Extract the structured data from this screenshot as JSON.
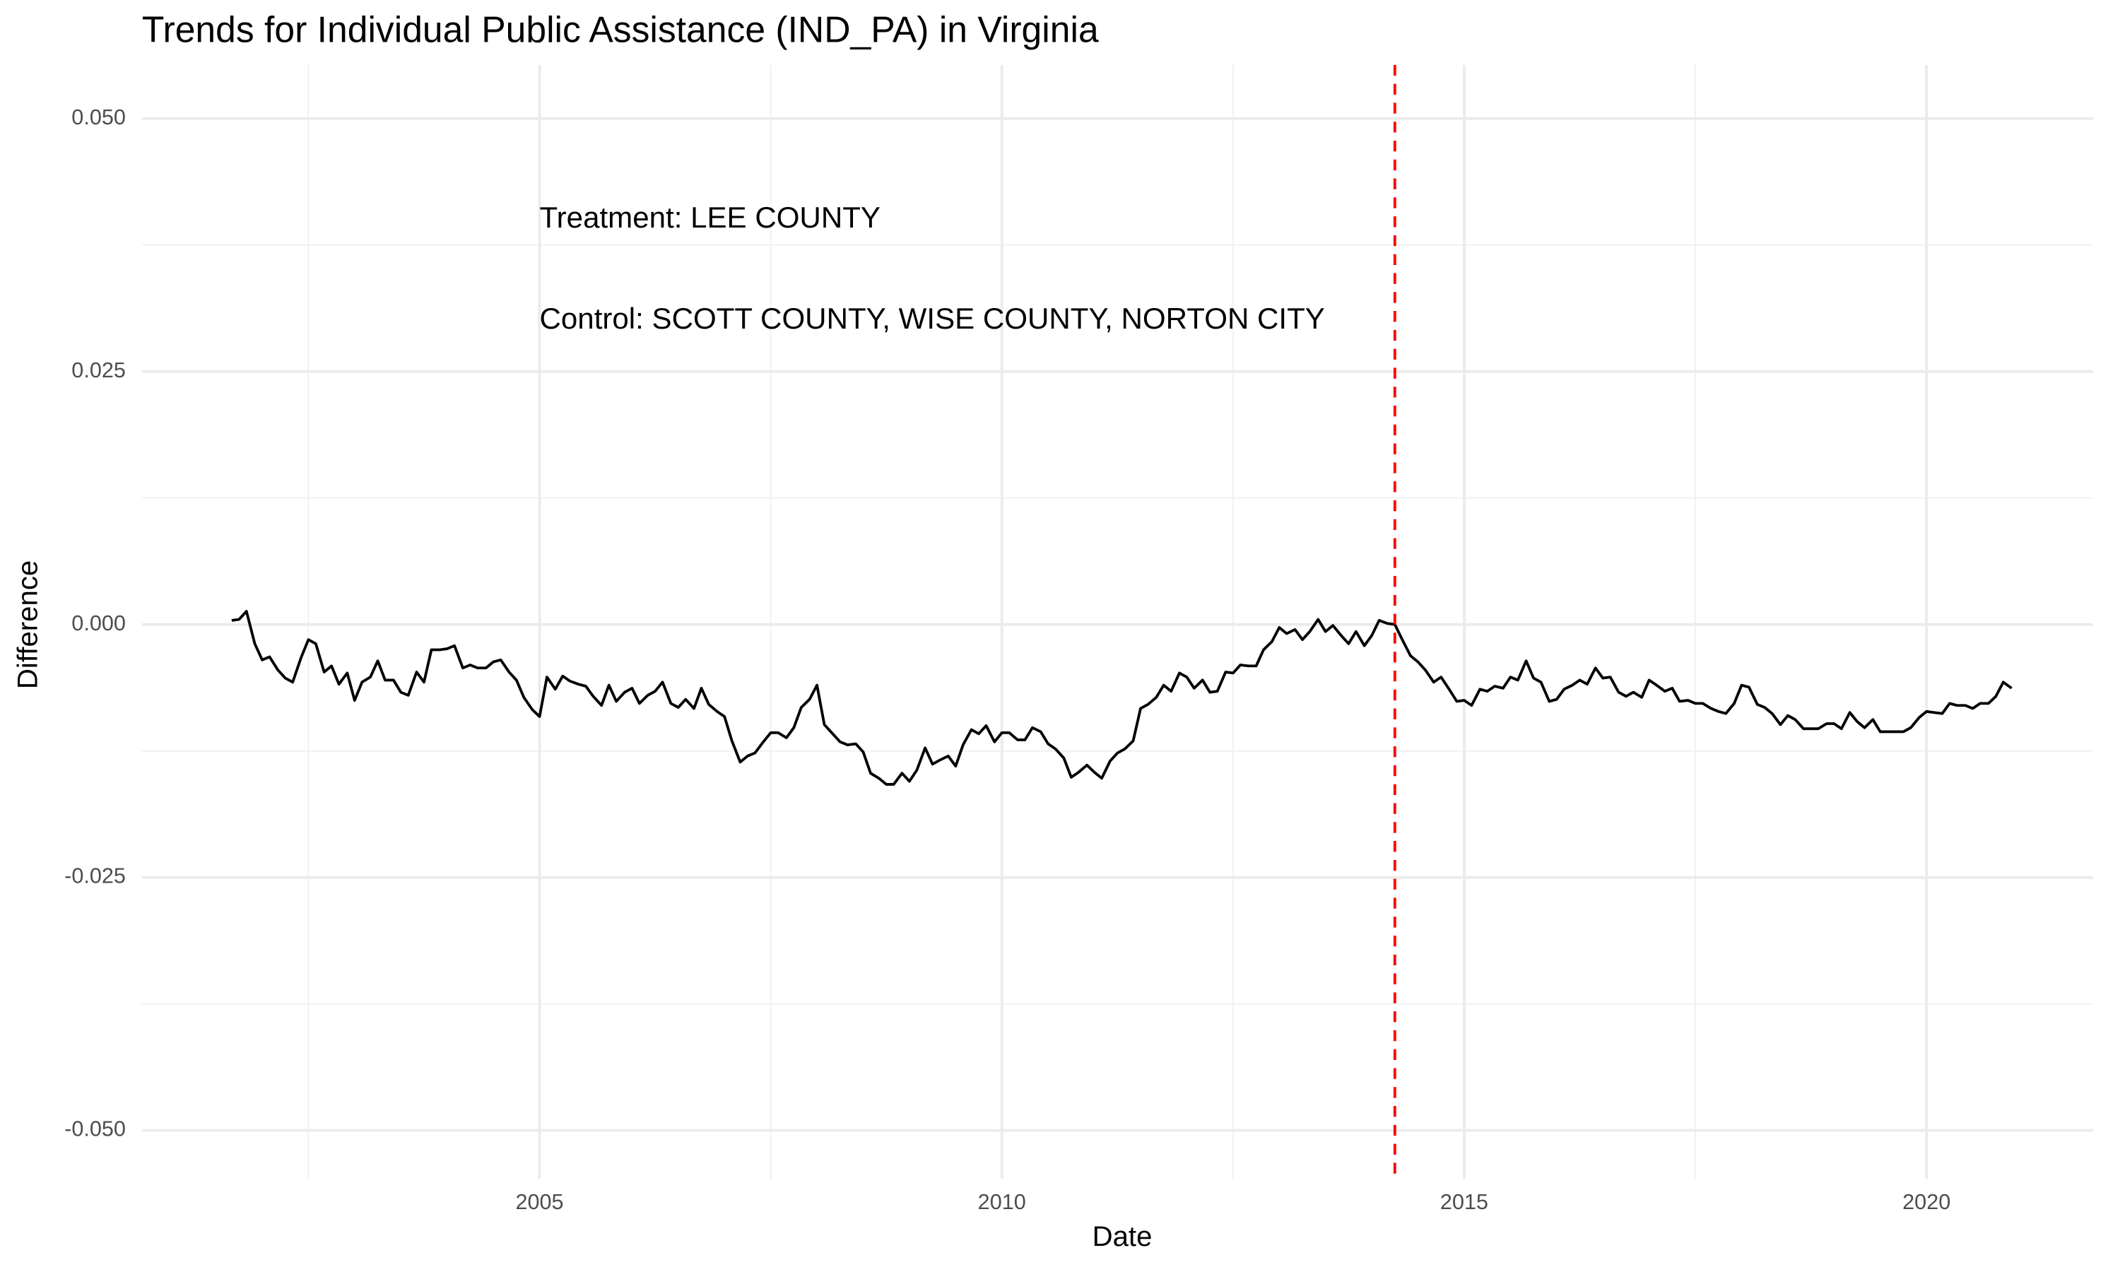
{
  "chart_data": {
    "type": "line",
    "title": "Trends for Individual Public Assistance (IND_PA) in Virginia",
    "x_label": "Date",
    "y_label": "Difference",
    "color": "#000000",
    "x": [
      2001.67,
      2001.75,
      2001.83,
      2001.92,
      2002.0,
      2002.08,
      2002.17,
      2002.25,
      2002.33,
      2002.42,
      2002.5,
      2002.58,
      2002.67,
      2002.75,
      2002.83,
      2002.92,
      2003.0,
      2003.08,
      2003.17,
      2003.25,
      2003.33,
      2003.42,
      2003.5,
      2003.58,
      2003.67,
      2003.75,
      2003.83,
      2003.92,
      2004.0,
      2004.08,
      2004.17,
      2004.25,
      2004.33,
      2004.42,
      2004.5,
      2004.58,
      2004.67,
      2004.75,
      2004.83,
      2004.92,
      2005.0,
      2005.08,
      2005.17,
      2005.25,
      2005.33,
      2005.42,
      2005.5,
      2005.58,
      2005.67,
      2005.75,
      2005.83,
      2005.92,
      2006.0,
      2006.08,
      2006.17,
      2006.25,
      2006.33,
      2006.42,
      2006.5,
      2006.58,
      2006.67,
      2006.75,
      2006.83,
      2006.92,
      2007.0,
      2007.08,
      2007.17,
      2007.25,
      2007.33,
      2007.42,
      2007.5,
      2007.58,
      2007.67,
      2007.75,
      2007.83,
      2007.92,
      2008.0,
      2008.08,
      2008.17,
      2008.25,
      2008.33,
      2008.42,
      2008.5,
      2008.58,
      2008.67,
      2008.75,
      2008.83,
      2008.92,
      2009.0,
      2009.08,
      2009.17,
      2009.25,
      2009.33,
      2009.42,
      2009.5,
      2009.58,
      2009.67,
      2009.75,
      2009.83,
      2009.92,
      2010.0,
      2010.08,
      2010.17,
      2010.25,
      2010.33,
      2010.42,
      2010.5,
      2010.58,
      2010.67,
      2010.75,
      2010.83,
      2010.92,
      2011.0,
      2011.08,
      2011.17,
      2011.25,
      2011.33,
      2011.42,
      2011.5,
      2011.58,
      2011.67,
      2011.75,
      2011.83,
      2011.92,
      2012.0,
      2012.08,
      2012.17,
      2012.25,
      2012.33,
      2012.42,
      2012.5,
      2012.58,
      2012.67,
      2012.75,
      2012.83,
      2012.92,
      2013.0,
      2013.08,
      2013.17,
      2013.25,
      2013.33,
      2013.42,
      2013.5,
      2013.58,
      2013.67,
      2013.75,
      2013.83,
      2013.92,
      2014.0,
      2014.08,
      2014.17,
      2014.25,
      2014.33,
      2014.42,
      2014.5,
      2014.58,
      2014.67,
      2014.75,
      2014.83,
      2014.92,
      2015.0,
      2015.08,
      2015.17,
      2015.25,
      2015.33,
      2015.42,
      2015.5,
      2015.58,
      2015.67,
      2015.75,
      2015.83,
      2015.92,
      2016.0,
      2016.08,
      2016.17,
      2016.25,
      2016.33,
      2016.42,
      2016.5,
      2016.58,
      2016.67,
      2016.75,
      2016.83,
      2016.92,
      2017.0,
      2017.08,
      2017.17,
      2017.25,
      2017.33,
      2017.42,
      2017.5,
      2017.58,
      2017.67,
      2017.75,
      2017.83,
      2017.92,
      2018.0,
      2018.08,
      2018.17,
      2018.25,
      2018.33,
      2018.42,
      2018.5,
      2018.58,
      2018.67,
      2018.75,
      2018.83,
      2018.92,
      2019.0,
      2019.08,
      2019.17,
      2019.25,
      2019.33,
      2019.42,
      2019.5,
      2019.58,
      2019.67,
      2019.75,
      2019.83,
      2019.92,
      2020.0,
      2020.08,
      2020.17,
      2020.25,
      2020.33,
      2020.42,
      2020.5,
      2020.58,
      2020.67,
      2020.75,
      2020.83,
      2020.92
    ],
    "values": [
      0.0004,
      0.0005,
      0.0013,
      -0.0019,
      -0.0035,
      -0.0032,
      -0.0045,
      -0.0053,
      -0.0057,
      -0.0033,
      -0.0015,
      -0.0019,
      -0.0047,
      -0.0041,
      -0.0059,
      -0.0048,
      -0.0075,
      -0.0057,
      -0.0052,
      -0.0036,
      -0.0055,
      -0.0055,
      -0.0067,
      -0.007,
      -0.0047,
      -0.0057,
      -0.0025,
      -0.0025,
      -0.0024,
      -0.0021,
      -0.0043,
      -0.004,
      -0.0043,
      -0.0043,
      -0.0037,
      -0.0035,
      -0.0047,
      -0.0055,
      -0.0072,
      -0.0084,
      -0.0091,
      -0.0052,
      -0.0064,
      -0.0051,
      -0.0056,
      -0.0059,
      -0.0061,
      -0.0071,
      -0.008,
      -0.006,
      -0.0076,
      -0.0067,
      -0.0063,
      -0.0078,
      -0.007,
      -0.0066,
      -0.0057,
      -0.0078,
      -0.0082,
      -0.0074,
      -0.0083,
      -0.0063,
      -0.0079,
      -0.0086,
      -0.0091,
      -0.0115,
      -0.0136,
      -0.013,
      -0.0127,
      -0.0116,
      -0.0107,
      -0.0107,
      -0.0112,
      -0.0102,
      -0.0082,
      -0.0074,
      -0.006,
      -0.0099,
      -0.0108,
      -0.0116,
      -0.0119,
      -0.0118,
      -0.0126,
      -0.0147,
      -0.0152,
      -0.0158,
      -0.0158,
      -0.0147,
      -0.0155,
      -0.0144,
      -0.0122,
      -0.0138,
      -0.0134,
      -0.013,
      -0.014,
      -0.0119,
      -0.0104,
      -0.0108,
      -0.01,
      -0.0116,
      -0.0107,
      -0.0107,
      -0.0114,
      -0.0114,
      -0.0102,
      -0.0106,
      -0.0118,
      -0.0123,
      -0.0132,
      -0.0151,
      -0.0146,
      -0.0139,
      -0.0146,
      -0.0152,
      -0.0135,
      -0.0127,
      -0.0123,
      -0.0115,
      -0.0083,
      -0.0079,
      -0.0072,
      -0.006,
      -0.0066,
      -0.0048,
      -0.0052,
      -0.0063,
      -0.0055,
      -0.0067,
      -0.0066,
      -0.0047,
      -0.0048,
      -0.004,
      -0.0041,
      -0.0041,
      -0.0025,
      -0.0017,
      -0.0003,
      -0.0009,
      -0.0005,
      -0.0015,
      -0.0007,
      0.0005,
      -0.0007,
      -0.0001,
      -0.0011,
      -0.0019,
      -0.0007,
      -0.0021,
      -0.0011,
      0.0004,
      0.0001,
      0.0,
      -0.0015,
      -0.0031,
      -0.0037,
      -0.0045,
      -0.0057,
      -0.0052,
      -0.0063,
      -0.0076,
      -0.0075,
      -0.008,
      -0.0064,
      -0.0066,
      -0.0061,
      -0.0063,
      -0.0052,
      -0.0055,
      -0.0036,
      -0.0053,
      -0.0057,
      -0.0076,
      -0.0074,
      -0.0064,
      -0.006,
      -0.0055,
      -0.0059,
      -0.0043,
      -0.0053,
      -0.0052,
      -0.0067,
      -0.0071,
      -0.0067,
      -0.0072,
      -0.0055,
      -0.006,
      -0.0066,
      -0.0063,
      -0.0076,
      -0.0075,
      -0.0078,
      -0.0078,
      -0.0083,
      -0.0086,
      -0.0088,
      -0.0078,
      -0.006,
      -0.0062,
      -0.0079,
      -0.0082,
      -0.0088,
      -0.0099,
      -0.009,
      -0.0094,
      -0.0103,
      -0.0103,
      -0.0103,
      -0.0098,
      -0.0098,
      -0.0103,
      -0.0087,
      -0.0096,
      -0.0102,
      -0.0094,
      -0.0106,
      -0.0106,
      -0.0106,
      -0.0106,
      -0.0102,
      -0.0092,
      -0.0086,
      -0.0087,
      -0.0088,
      -0.0078,
      -0.008,
      -0.008,
      -0.0083,
      -0.0078,
      -0.0078,
      -0.0071,
      -0.0057,
      -0.0063
    ],
    "vline": {
      "x": 2014.25,
      "color": "#ff0000"
    },
    "annotations": [
      {
        "text": "Treatment: LEE COUNTY",
        "x": 2005,
        "y": 0.04
      },
      {
        "text": "Control: SCOTT COUNTY, WISE COUNTY, NORTON CITY",
        "x": 2005,
        "y": 0.03
      }
    ],
    "xlim": [
      2000.7,
      2021.8
    ],
    "ylim": [
      -0.0548,
      0.0553
    ],
    "xticks": [
      2005,
      2010,
      2015,
      2020
    ],
    "yticks": [
      {
        "value": 0.05,
        "label": "0.050"
      },
      {
        "value": 0.025,
        "label": "0.025"
      },
      {
        "value": 0,
        "label": "0.000"
      },
      {
        "value": -0.025,
        "label": "-0.025"
      },
      {
        "value": -0.05,
        "label": "-0.050"
      }
    ],
    "grid": true
  }
}
